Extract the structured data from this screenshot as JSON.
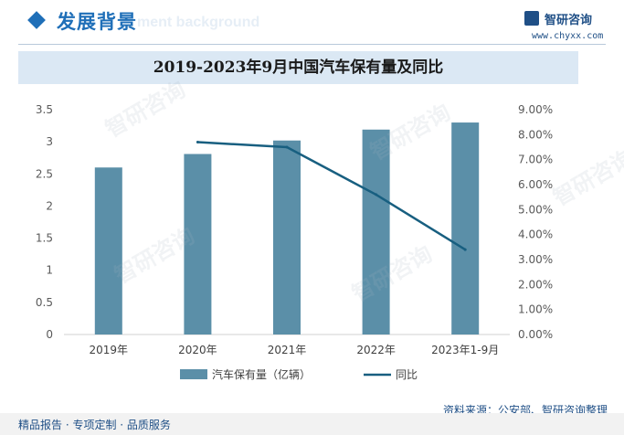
{
  "header": {
    "title": "发展背景",
    "title_ghost": "ment background",
    "brand_name": "智研咨询",
    "brand_url": "www.chyxx.com"
  },
  "watermark": {
    "text": "智研咨询"
  },
  "chart_data": {
    "type": "bar+line",
    "title": "2019-2023年9月中国汽车保有量及同比",
    "categories": [
      "2019年",
      "2020年",
      "2021年",
      "2022年",
      "2023年1-9月"
    ],
    "series": [
      {
        "name": "汽车保有量（亿辆）",
        "type": "bar",
        "axis": "left",
        "color": "#5b8fa8",
        "values": [
          2.6,
          2.81,
          3.02,
          3.19,
          3.3
        ]
      },
      {
        "name": "同比",
        "type": "line",
        "axis": "right",
        "color": "#185f80",
        "values": [
          null,
          7.7,
          7.5,
          5.6,
          3.4
        ]
      }
    ],
    "y_left": {
      "min": 0,
      "max": 3.5,
      "ticks": [
        "0",
        "0.5",
        "1",
        "1.5",
        "2",
        "2.5",
        "3",
        "3.5"
      ]
    },
    "y_right": {
      "min": 0,
      "max": 9,
      "unit": "%",
      "ticks": [
        "0.00%",
        "1.00%",
        "2.00%",
        "3.00%",
        "4.00%",
        "5.00%",
        "6.00%",
        "7.00%",
        "8.00%",
        "9.00%"
      ]
    },
    "legend_position": "bottom-center"
  },
  "source": "资料来源：公安部、智研咨询整理",
  "footer": "精品报告 · 专项定制 · 品质服务"
}
